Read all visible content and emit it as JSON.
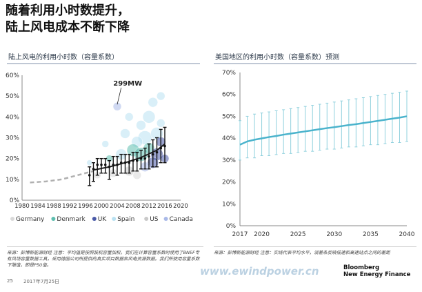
{
  "title": {
    "line1": "随着利用小时数提升，",
    "line2": "陆上风电成本不断下降"
  },
  "left_panel": {
    "title": "陆上风电的利用小时数（容量系数）",
    "note": "来源：彭博新能源财经 注意：平均值是按照装机容量加权。我们在计算容量系数时使用了BNEF专有风场容量数据工具，采用德国公司所提供的真实项目数据和风电资源数据。我们所使用容量系数下限值，即是P50值。"
  },
  "right_panel": {
    "title": "美国地区的利用小时数（容量系数）预测",
    "note": "来源：彭博新能源财经 注意：实线代表平均水平，误差条反映低速和高速站点之间的差距"
  },
  "footer": {
    "page": "25",
    "date": "2017年7月25日",
    "watermark": "www.ewindpower.cn",
    "brand_line1": "Bloomberg",
    "brand_line2": "New Energy Finance"
  },
  "chart_data": [
    {
      "type": "scatter",
      "title": "陆上风电的利用小时数（容量系数）",
      "xlim": [
        1980,
        2020
      ],
      "ylim": [
        0,
        60
      ],
      "xticks": [
        1980,
        1984,
        1988,
        1992,
        1996,
        2000,
        2004,
        2008,
        2012,
        2016,
        2020
      ],
      "yticks": [
        "0%",
        "10%",
        "20%",
        "30%",
        "40%",
        "50%",
        "60%"
      ],
      "annotation": "299MW",
      "legend_position": "bottom",
      "legend": [
        {
          "name": "Germany",
          "color": "#d9d9d9"
        },
        {
          "name": "Denmark",
          "color": "#5fbfb0"
        },
        {
          "name": "UK",
          "color": "#4a5aa8"
        },
        {
          "name": "Spain",
          "color": "#b9e1f2"
        },
        {
          "name": "US",
          "color": "#c9c9c9"
        },
        {
          "name": "Canada",
          "color": "#a9b9e8"
        }
      ],
      "trend_dashed": [
        {
          "x": 1982,
          "y": 8.5
        },
        {
          "x": 1986,
          "y": 9
        },
        {
          "x": 1990,
          "y": 10
        },
        {
          "x": 1994,
          "y": 12
        },
        {
          "x": 1998,
          "y": 14
        }
      ],
      "trend_solid": [
        {
          "x": 1998,
          "y": 14.5
        },
        {
          "x": 2002,
          "y": 16
        },
        {
          "x": 2006,
          "y": 18
        },
        {
          "x": 2010,
          "y": 20.5
        },
        {
          "x": 2014,
          "y": 24
        },
        {
          "x": 2016,
          "y": 27
        }
      ],
      "errorbars": [
        {
          "x": 1997,
          "y": 12,
          "lo": 7,
          "hi": 16
        },
        {
          "x": 1998,
          "y": 15,
          "lo": 9,
          "hi": 18
        },
        {
          "x": 1999,
          "y": 17,
          "lo": 12,
          "hi": 20
        },
        {
          "x": 2000,
          "y": 17,
          "lo": 13,
          "hi": 20
        },
        {
          "x": 2001,
          "y": 17,
          "lo": 13,
          "hi": 20
        },
        {
          "x": 2002,
          "y": 16,
          "lo": 10,
          "hi": 19
        },
        {
          "x": 2003,
          "y": 17,
          "lo": 13,
          "hi": 21
        },
        {
          "x": 2004,
          "y": 17,
          "lo": 12,
          "hi": 21
        },
        {
          "x": 2005,
          "y": 18,
          "lo": 13,
          "hi": 22
        },
        {
          "x": 2006,
          "y": 18,
          "lo": 13,
          "hi": 22
        },
        {
          "x": 2007,
          "y": 18,
          "lo": 13,
          "hi": 22
        },
        {
          "x": 2008,
          "y": 19,
          "lo": 14,
          "hi": 23
        },
        {
          "x": 2009,
          "y": 19,
          "lo": 14,
          "hi": 23
        },
        {
          "x": 2010,
          "y": 20,
          "lo": 15,
          "hi": 24
        },
        {
          "x": 2011,
          "y": 20,
          "lo": 15,
          "hi": 25
        },
        {
          "x": 2012,
          "y": 21,
          "lo": 15,
          "hi": 27
        },
        {
          "x": 2013,
          "y": 22,
          "lo": 16,
          "hi": 29
        },
        {
          "x": 2014,
          "y": 23,
          "lo": 16,
          "hi": 30
        },
        {
          "x": 2015,
          "y": 25,
          "lo": 18,
          "hi": 34
        },
        {
          "x": 2016,
          "y": 26,
          "lo": 18,
          "hi": 35
        }
      ],
      "bubbles": [
        {
          "x": 2010,
          "y": 36,
          "r": 7,
          "series": "Spain"
        },
        {
          "x": 2012,
          "y": 40,
          "r": 9,
          "series": "Spain"
        },
        {
          "x": 2013,
          "y": 47,
          "r": 7,
          "series": "Spain"
        },
        {
          "x": 2015,
          "y": 50,
          "r": 6,
          "series": "Spain"
        },
        {
          "x": 2011,
          "y": 30,
          "r": 10,
          "series": "Spain"
        },
        {
          "x": 2009,
          "y": 28,
          "r": 8,
          "series": "Spain"
        },
        {
          "x": 2014,
          "y": 32,
          "r": 9,
          "series": "Spain"
        },
        {
          "x": 2006,
          "y": 32,
          "r": 7,
          "series": "Spain"
        },
        {
          "x": 2005,
          "y": 22,
          "r": 8,
          "series": "Spain"
        },
        {
          "x": 2004,
          "y": 45,
          "r": 6,
          "series": "Canada"
        },
        {
          "x": 2001,
          "y": 27,
          "r": 5,
          "series": "Spain"
        },
        {
          "x": 2008,
          "y": 24,
          "r": 9,
          "series": "Denmark"
        },
        {
          "x": 2010,
          "y": 22,
          "r": 10,
          "series": "Denmark"
        },
        {
          "x": 2012,
          "y": 25,
          "r": 8,
          "series": "Denmark"
        },
        {
          "x": 2014,
          "y": 22,
          "r": 9,
          "series": "UK"
        },
        {
          "x": 2015,
          "y": 28,
          "r": 7,
          "series": "UK"
        },
        {
          "x": 2013,
          "y": 18,
          "r": 8,
          "series": "UK"
        },
        {
          "x": 2016,
          "y": 20,
          "r": 6,
          "series": "UK"
        },
        {
          "x": 2011,
          "y": 16,
          "r": 7,
          "series": "Canada"
        },
        {
          "x": 2003,
          "y": 13,
          "r": 6,
          "series": "Germany"
        },
        {
          "x": 1999,
          "y": 12,
          "r": 5,
          "series": "Germany"
        },
        {
          "x": 2007,
          "y": 14,
          "r": 7,
          "series": "US"
        },
        {
          "x": 2009,
          "y": 12,
          "r": 6,
          "series": "Germany"
        },
        {
          "x": 2015,
          "y": 37,
          "r": 6,
          "series": "Spain"
        },
        {
          "x": 2007,
          "y": 40,
          "r": 6,
          "series": "Spain"
        },
        {
          "x": 2002,
          "y": 20,
          "r": 5,
          "series": "Denmark"
        },
        {
          "x": 1997,
          "y": 18,
          "r": 4,
          "series": "Spain"
        }
      ]
    },
    {
      "type": "line",
      "title": "美国地区的利用小时数（容量系数）预测",
      "xlim": [
        2017,
        2040
      ],
      "ylim": [
        0,
        70
      ],
      "xticks": [
        2017,
        2020,
        2025,
        2030,
        2035,
        2040
      ],
      "yticks": [
        "0%",
        "10%",
        "20%",
        "30%",
        "40%",
        "50%",
        "60%",
        "70%"
      ],
      "series": [
        {
          "values": [
            {
              "x": 2017,
              "y": 37
            },
            {
              "x": 2018,
              "y": 38.5
            },
            {
              "x": 2019,
              "y": 39.3
            },
            {
              "x": 2020,
              "y": 39.9
            },
            {
              "x": 2021,
              "y": 40.5
            },
            {
              "x": 2022,
              "y": 41.0
            },
            {
              "x": 2023,
              "y": 41.6
            },
            {
              "x": 2024,
              "y": 42.1
            },
            {
              "x": 2025,
              "y": 42.6
            },
            {
              "x": 2026,
              "y": 43.1
            },
            {
              "x": 2027,
              "y": 43.6
            },
            {
              "x": 2028,
              "y": 44.1
            },
            {
              "x": 2029,
              "y": 44.6
            },
            {
              "x": 2030,
              "y": 45.0
            },
            {
              "x": 2031,
              "y": 45.5
            },
            {
              "x": 2032,
              "y": 46.0
            },
            {
              "x": 2033,
              "y": 46.4
            },
            {
              "x": 2034,
              "y": 46.9
            },
            {
              "x": 2035,
              "y": 47.4
            },
            {
              "x": 2036,
              "y": 47.9
            },
            {
              "x": 2037,
              "y": 48.4
            },
            {
              "x": 2038,
              "y": 48.9
            },
            {
              "x": 2039,
              "y": 49.4
            },
            {
              "x": 2040,
              "y": 50.0
            }
          ],
          "color": "#4ab3cc"
        }
      ],
      "errorbars": [
        {
          "x": 2017,
          "lo": 30,
          "hi": 48
        },
        {
          "x": 2018,
          "lo": 31,
          "hi": 50
        },
        {
          "x": 2019,
          "lo": 31,
          "hi": 51
        },
        {
          "x": 2020,
          "lo": 32,
          "hi": 51.5
        },
        {
          "x": 2021,
          "lo": 32,
          "hi": 52
        },
        {
          "x": 2022,
          "lo": 32.5,
          "hi": 52.5
        },
        {
          "x": 2023,
          "lo": 33,
          "hi": 53
        },
        {
          "x": 2024,
          "lo": 33,
          "hi": 53.5
        },
        {
          "x": 2025,
          "lo": 33.5,
          "hi": 54
        },
        {
          "x": 2026,
          "lo": 34,
          "hi": 54.5
        },
        {
          "x": 2027,
          "lo": 34,
          "hi": 55
        },
        {
          "x": 2028,
          "lo": 34.5,
          "hi": 55.5
        },
        {
          "x": 2029,
          "lo": 35,
          "hi": 56
        },
        {
          "x": 2030,
          "lo": 35,
          "hi": 56.5
        },
        {
          "x": 2031,
          "lo": 35.5,
          "hi": 57
        },
        {
          "x": 2032,
          "lo": 36,
          "hi": 57.5
        },
        {
          "x": 2033,
          "lo": 36,
          "hi": 58
        },
        {
          "x": 2034,
          "lo": 36.5,
          "hi": 58.5
        },
        {
          "x": 2035,
          "lo": 37,
          "hi": 59
        },
        {
          "x": 2036,
          "lo": 37,
          "hi": 59.5
        },
        {
          "x": 2037,
          "lo": 37.5,
          "hi": 60
        },
        {
          "x": 2038,
          "lo": 38,
          "hi": 60.5
        },
        {
          "x": 2039,
          "lo": 38,
          "hi": 61
        },
        {
          "x": 2040,
          "lo": 38.5,
          "hi": 61.5
        }
      ]
    }
  ]
}
